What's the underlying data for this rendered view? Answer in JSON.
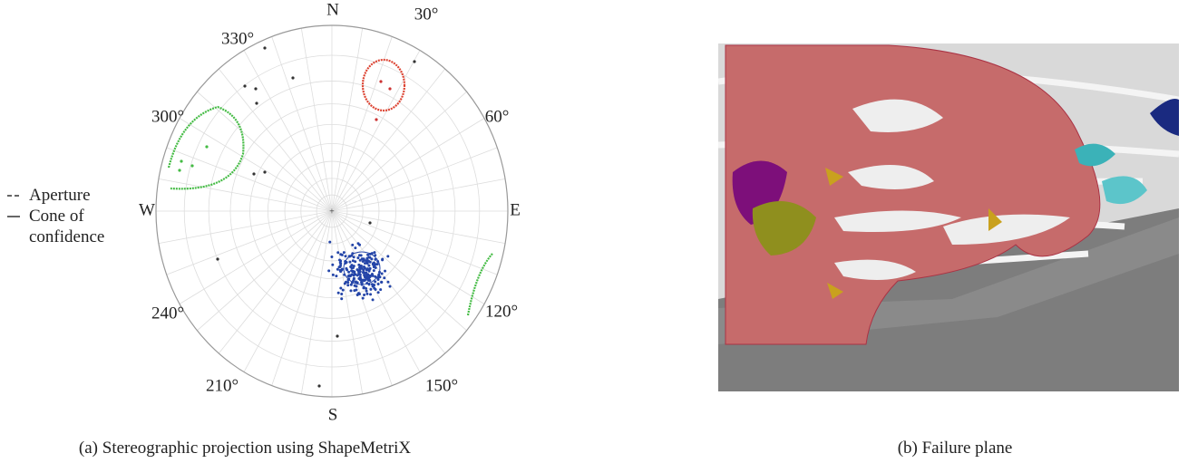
{
  "stereonet": {
    "north": "N",
    "south": "S",
    "east": "E",
    "west": "W",
    "angles": [
      "30°",
      "60°",
      "120°",
      "150°",
      "210°",
      "240°",
      "300°",
      "330°"
    ],
    "legend": [
      "Aperture",
      "Cone of confidence"
    ]
  },
  "captions": [
    "(a) Stereographic projection using ShapeMetriX",
    "(b) Failure plane"
  ]
}
